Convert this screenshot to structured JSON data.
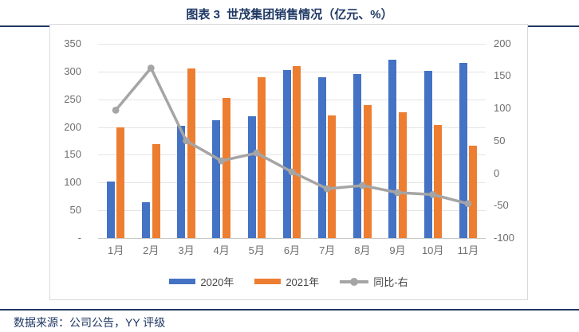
{
  "header": {
    "title": "图表 3  世茂集团销售情况（亿元、%）"
  },
  "footer": {
    "source": "数据来源：公司公告，YY 评级"
  },
  "legend": {
    "items": [
      {
        "label": "2020年",
        "swatch": "blue-bar"
      },
      {
        "label": "2021年",
        "swatch": "orange-bar"
      },
      {
        "label": "同比-右",
        "swatch": "gray-line"
      }
    ]
  },
  "colors": {
    "navy": "#1F3864",
    "bar_2020": "#4472C4",
    "bar_2021": "#ED7D31",
    "yoy_line": "#A5A5A5",
    "gridline": "#E4E4E4",
    "axis_text": "#6E6E6E"
  },
  "chart_data": {
    "type": "bar",
    "subtype": "grouped-bars-with-line",
    "title": "图表 3  世茂集团销售情况（亿元、%）",
    "categories": [
      "1月",
      "2月",
      "3月",
      "4月",
      "5月",
      "6月",
      "7月",
      "8月",
      "9月",
      "10月",
      "11月"
    ],
    "series": [
      {
        "name": "2020年",
        "type": "bar",
        "axis": "left",
        "color": "#4472C4",
        "values": [
          102,
          65,
          203,
          212,
          220,
          303,
          290,
          296,
          322,
          301,
          315
        ]
      },
      {
        "name": "2021年",
        "type": "bar",
        "axis": "left",
        "color": "#ED7D31",
        "values": [
          200,
          170,
          305,
          252,
          290,
          310,
          221,
          240,
          226,
          204,
          167
        ]
      },
      {
        "name": "同比-右",
        "type": "line",
        "axis": "right",
        "color": "#A5A5A5",
        "values": [
          97,
          162,
          50,
          19,
          31,
          2,
          -24,
          -19,
          -30,
          -33,
          -47
        ]
      }
    ],
    "left_axis": {
      "min": 0,
      "max": 350,
      "tick_values": [
        350,
        300,
        250,
        200,
        150,
        100,
        50,
        0
      ],
      "tick_labels": [
        "350",
        "300",
        "250",
        "200",
        "150",
        "100",
        "50",
        "-"
      ]
    },
    "right_axis": {
      "min": -100,
      "max": 200,
      "tick_values": [
        200,
        150,
        100,
        50,
        0,
        -50,
        -100
      ],
      "tick_labels": [
        "200",
        "150",
        "100",
        "50",
        "0",
        "-50",
        "-100"
      ]
    },
    "grid": true,
    "legend_position": "bottom"
  }
}
